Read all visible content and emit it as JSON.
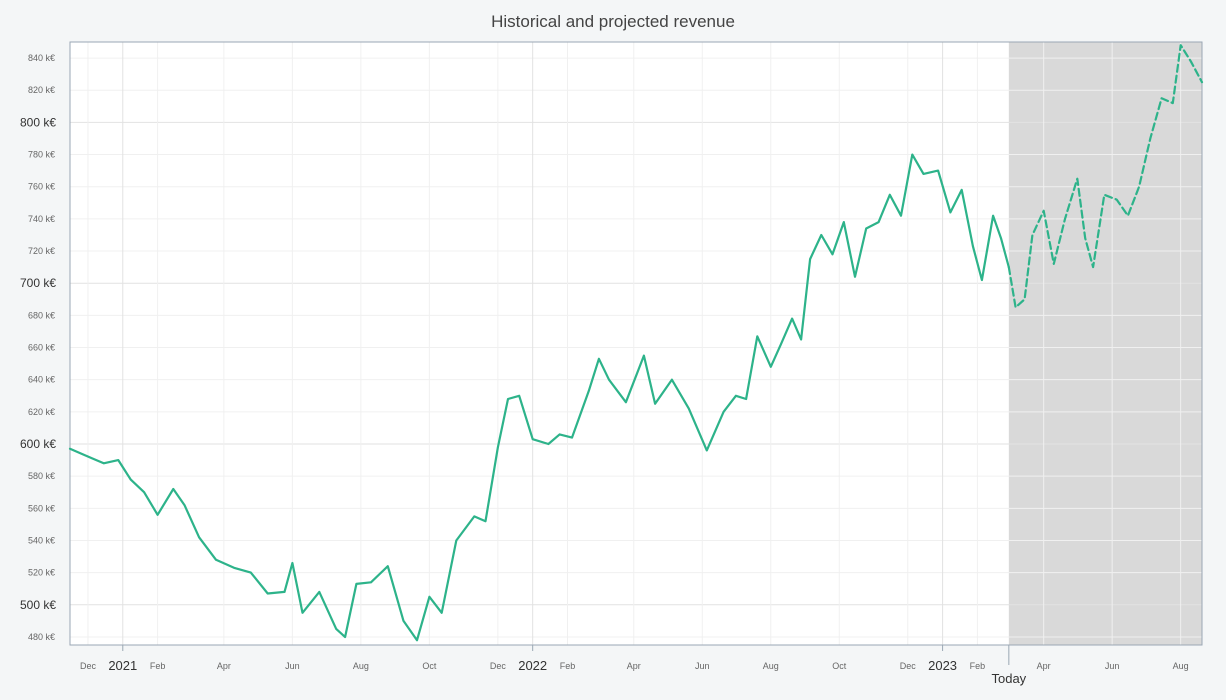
{
  "chart_data": {
    "type": "line",
    "title": "Historical and projected revenue",
    "xlabel": "",
    "ylabel": "",
    "ylim": [
      475,
      850
    ],
    "xlim": [
      "2020-11-15",
      "2023-08-20"
    ],
    "y_major_ticks": [
      {
        "value": 500,
        "label": "500 k€"
      },
      {
        "value": 600,
        "label": "600 k€"
      },
      {
        "value": 700,
        "label": "700 k€"
      },
      {
        "value": 800,
        "label": "800 k€"
      }
    ],
    "y_minor_ticks": [
      {
        "value": 480,
        "label": "480 k€"
      },
      {
        "value": 520,
        "label": "520 k€"
      },
      {
        "value": 540,
        "label": "540 k€"
      },
      {
        "value": 560,
        "label": "560 k€"
      },
      {
        "value": 580,
        "label": "580 k€"
      },
      {
        "value": 620,
        "label": "620 k€"
      },
      {
        "value": 640,
        "label": "640 k€"
      },
      {
        "value": 660,
        "label": "660 k€"
      },
      {
        "value": 680,
        "label": "680 k€"
      },
      {
        "value": 720,
        "label": "720 k€"
      },
      {
        "value": 740,
        "label": "740 k€"
      },
      {
        "value": 760,
        "label": "760 k€"
      },
      {
        "value": 780,
        "label": "780 k€"
      },
      {
        "value": 820,
        "label": "820 k€"
      },
      {
        "value": 840,
        "label": "840 k€"
      }
    ],
    "x_major_ticks": [
      {
        "date": "2021-01-01",
        "label": "2021"
      },
      {
        "date": "2022-01-01",
        "label": "2022"
      },
      {
        "date": "2023-01-01",
        "label": "2023"
      }
    ],
    "x_minor_ticks": [
      {
        "date": "2020-12-01",
        "label": "Dec"
      },
      {
        "date": "2021-02-01",
        "label": "Feb"
      },
      {
        "date": "2021-04-01",
        "label": "Apr"
      },
      {
        "date": "2021-06-01",
        "label": "Jun"
      },
      {
        "date": "2021-08-01",
        "label": "Aug"
      },
      {
        "date": "2021-10-01",
        "label": "Oct"
      },
      {
        "date": "2021-12-01",
        "label": "Dec"
      },
      {
        "date": "2022-02-01",
        "label": "Feb"
      },
      {
        "date": "2022-04-01",
        "label": "Apr"
      },
      {
        "date": "2022-06-01",
        "label": "Jun"
      },
      {
        "date": "2022-08-01",
        "label": "Aug"
      },
      {
        "date": "2022-10-01",
        "label": "Oct"
      },
      {
        "date": "2022-12-01",
        "label": "Dec"
      },
      {
        "date": "2023-02-01",
        "label": "Feb"
      },
      {
        "date": "2023-04-01",
        "label": "Apr"
      },
      {
        "date": "2023-06-01",
        "label": "Jun"
      },
      {
        "date": "2023-08-01",
        "label": "Aug"
      }
    ],
    "today": {
      "date": "2023-03-01",
      "label": "Today"
    },
    "grid": true,
    "colors": {
      "line": "#2db38a",
      "projection_band": "#d9d9d9",
      "grid_major": "#e2e2e2",
      "grid_minor": "#f0f0f0",
      "axis": "#9aa7b4"
    },
    "series": [
      {
        "style": "solid",
        "points": [
          [
            "2020-11-15",
            597
          ],
          [
            "2020-11-25",
            594
          ],
          [
            "2020-12-05",
            591
          ],
          [
            "2020-12-15",
            588
          ],
          [
            "2020-12-28",
            590
          ],
          [
            "2021-01-08",
            578
          ],
          [
            "2021-01-20",
            570
          ],
          [
            "2021-02-01",
            556
          ],
          [
            "2021-02-15",
            572
          ],
          [
            "2021-02-25",
            562
          ],
          [
            "2021-03-10",
            542
          ],
          [
            "2021-03-25",
            528
          ],
          [
            "2021-04-10",
            523
          ],
          [
            "2021-04-25",
            520
          ],
          [
            "2021-05-10",
            507
          ],
          [
            "2021-05-25",
            508
          ],
          [
            "2021-06-01",
            526
          ],
          [
            "2021-06-10",
            495
          ],
          [
            "2021-06-25",
            508
          ],
          [
            "2021-07-10",
            485
          ],
          [
            "2021-07-18",
            480
          ],
          [
            "2021-07-28",
            513
          ],
          [
            "2021-08-10",
            514
          ],
          [
            "2021-08-25",
            524
          ],
          [
            "2021-09-08",
            490
          ],
          [
            "2021-09-20",
            478
          ],
          [
            "2021-10-01",
            505
          ],
          [
            "2021-10-12",
            495
          ],
          [
            "2021-10-25",
            540
          ],
          [
            "2021-11-10",
            555
          ],
          [
            "2021-11-20",
            552
          ],
          [
            "2021-12-01",
            598
          ],
          [
            "2021-12-10",
            628
          ],
          [
            "2021-12-20",
            630
          ],
          [
            "2022-01-01",
            603
          ],
          [
            "2022-01-15",
            600
          ],
          [
            "2022-01-25",
            606
          ],
          [
            "2022-02-05",
            604
          ],
          [
            "2022-02-20",
            633
          ],
          [
            "2022-03-01",
            653
          ],
          [
            "2022-03-10",
            640
          ],
          [
            "2022-03-25",
            626
          ],
          [
            "2022-04-10",
            655
          ],
          [
            "2022-04-20",
            625
          ],
          [
            "2022-05-05",
            640
          ],
          [
            "2022-05-20",
            622
          ],
          [
            "2022-06-05",
            596
          ],
          [
            "2022-06-20",
            620
          ],
          [
            "2022-07-01",
            630
          ],
          [
            "2022-07-10",
            628
          ],
          [
            "2022-07-20",
            667
          ],
          [
            "2022-08-01",
            648
          ],
          [
            "2022-08-10",
            662
          ],
          [
            "2022-08-20",
            678
          ],
          [
            "2022-08-28",
            665
          ],
          [
            "2022-09-05",
            715
          ],
          [
            "2022-09-15",
            730
          ],
          [
            "2022-09-25",
            718
          ],
          [
            "2022-10-05",
            738
          ],
          [
            "2022-10-15",
            704
          ],
          [
            "2022-10-25",
            734
          ],
          [
            "2022-11-05",
            738
          ],
          [
            "2022-11-15",
            755
          ],
          [
            "2022-11-25",
            742
          ],
          [
            "2022-12-05",
            780
          ],
          [
            "2022-12-15",
            768
          ],
          [
            "2022-12-28",
            770
          ],
          [
            "2023-01-08",
            744
          ],
          [
            "2023-01-18",
            758
          ],
          [
            "2023-01-28",
            723
          ],
          [
            "2023-02-05",
            702
          ],
          [
            "2023-02-15",
            742
          ],
          [
            "2023-02-22",
            728
          ],
          [
            "2023-03-01",
            710
          ]
        ]
      },
      {
        "style": "dashed",
        "points": [
          [
            "2023-03-01",
            710
          ],
          [
            "2023-03-07",
            685
          ],
          [
            "2023-03-15",
            690
          ],
          [
            "2023-03-22",
            730
          ],
          [
            "2023-04-01",
            745
          ],
          [
            "2023-04-10",
            712
          ],
          [
            "2023-04-20",
            740
          ],
          [
            "2023-05-01",
            765
          ],
          [
            "2023-05-08",
            728
          ],
          [
            "2023-05-15",
            710
          ],
          [
            "2023-05-25",
            755
          ],
          [
            "2023-06-05",
            752
          ],
          [
            "2023-06-15",
            742
          ],
          [
            "2023-06-25",
            760
          ],
          [
            "2023-07-05",
            790
          ],
          [
            "2023-07-15",
            815
          ],
          [
            "2023-07-25",
            812
          ],
          [
            "2023-08-01",
            848
          ],
          [
            "2023-08-10",
            838
          ],
          [
            "2023-08-20",
            825
          ]
        ]
      }
    ]
  }
}
